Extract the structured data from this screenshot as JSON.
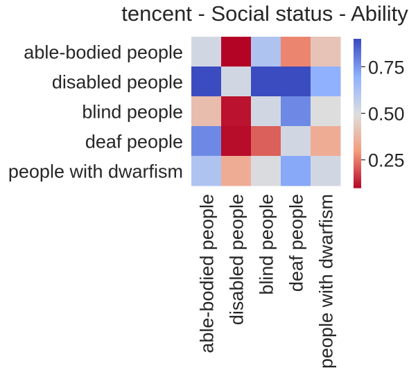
{
  "chart_data": {
    "type": "heatmap",
    "title": "tencent - Social status - Ability",
    "xlabel": "",
    "ylabel": "",
    "row_labels": [
      "able-bodied people",
      "disabled people",
      "blind people",
      "deaf people",
      "people with dwarfism"
    ],
    "col_labels": [
      "able-bodied people",
      "disabled people",
      "blind people",
      "deaf people",
      "people with dwarfism"
    ],
    "values": [
      [
        0.53,
        0.1,
        0.62,
        0.27,
        0.42
      ],
      [
        0.9,
        0.53,
        0.9,
        0.9,
        0.7
      ],
      [
        0.4,
        0.12,
        0.53,
        0.78,
        0.5
      ],
      [
        0.78,
        0.11,
        0.22,
        0.53,
        0.35
      ],
      [
        0.62,
        0.35,
        0.51,
        0.72,
        0.53
      ]
    ],
    "colormap": "coolwarm",
    "vmin": 0.1,
    "vmax": 0.9,
    "colorbar_ticks": [
      "0.25",
      "0.50",
      "0.75"
    ],
    "colorbar_tick_values": [
      0.25,
      0.5,
      0.75
    ],
    "grid": false
  }
}
